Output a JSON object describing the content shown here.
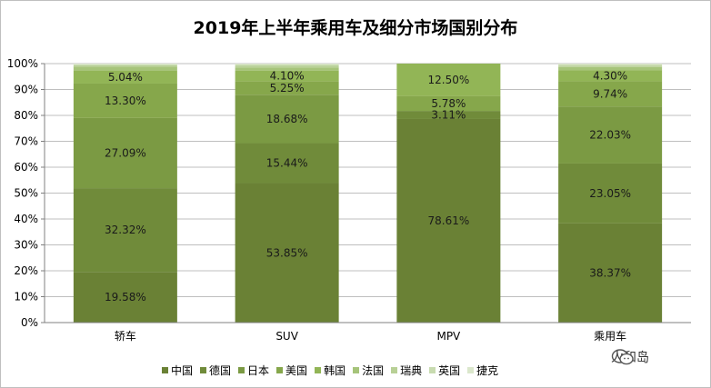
{
  "chart_data": {
    "type": "bar",
    "stacked": true,
    "title": "2019年上半年乘用车及细分市场国别分布",
    "categories": [
      "轿车",
      "SUV",
      "MPV",
      "乘用车"
    ],
    "yticks": [
      "0%",
      "10%",
      "20%",
      "30%",
      "40%",
      "50%",
      "60%",
      "70%",
      "80%",
      "90%",
      "100%"
    ],
    "ylim": [
      0,
      100
    ],
    "grid": true,
    "legend_position": "bottom",
    "series": [
      {
        "name": "中国",
        "color": "#6a8135",
        "values": [
          19.58,
          53.85,
          78.61,
          38.37
        ],
        "labels": [
          "19.58%",
          "53.85%",
          "78.61%",
          "38.37%"
        ]
      },
      {
        "name": "德国",
        "color": "#708b3a",
        "values": [
          32.32,
          15.44,
          3.11,
          23.05
        ],
        "labels": [
          "32.32%",
          "15.44%",
          "3.11%",
          "23.05%"
        ]
      },
      {
        "name": "日本",
        "color": "#7b9a43",
        "values": [
          27.09,
          18.68,
          0,
          22.03
        ],
        "labels": [
          "27.09%",
          "18.68%",
          "",
          "22.03%"
        ]
      },
      {
        "name": "美国",
        "color": "#86a74b",
        "values": [
          13.3,
          5.25,
          5.78,
          9.74
        ],
        "labels": [
          "13.30%",
          "5.25%",
          "5.78%",
          "9.74%"
        ]
      },
      {
        "name": "韩国",
        "color": "#92b556",
        "values": [
          5.04,
          4.1,
          12.5,
          4.3
        ],
        "labels": [
          "5.04%",
          "4.10%",
          "12.50%",
          "4.30%"
        ]
      },
      {
        "name": "法国",
        "color": "#a6c47a",
        "values": [
          1.5,
          1.2,
          0,
          1.2
        ],
        "labels": [
          "",
          "",
          "",
          ""
        ]
      },
      {
        "name": "瑞典",
        "color": "#b8d096",
        "values": [
          0.5,
          0.6,
          0,
          0.5
        ],
        "labels": [
          "",
          "",
          "",
          ""
        ]
      },
      {
        "name": "英国",
        "color": "#c8dbb0",
        "values": [
          0.4,
          0.6,
          0,
          0.5
        ],
        "labels": [
          "",
          "",
          "",
          ""
        ]
      },
      {
        "name": "捷克",
        "color": "#dbe7cc",
        "values": [
          0.27,
          0.28,
          0,
          0.31
        ],
        "labels": [
          "",
          "",
          "",
          ""
        ]
      }
    ]
  },
  "watermark": {
    "text": "人和岛",
    "icon": "wechat-icon"
  }
}
